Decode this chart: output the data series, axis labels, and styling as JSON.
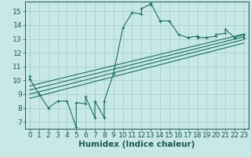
{
  "title": "",
  "xlabel": "Humidex (Indice chaleur)",
  "bg_color": "#c8e8e8",
  "grid_color": "#a8d0d0",
  "line_color": "#1a6e60",
  "xlim": [
    -0.5,
    23.5
  ],
  "ylim": [
    6.5,
    15.7
  ],
  "xticks": [
    0,
    1,
    2,
    3,
    4,
    5,
    6,
    7,
    8,
    9,
    10,
    11,
    12,
    13,
    14,
    15,
    16,
    17,
    18,
    19,
    20,
    21,
    22,
    23
  ],
  "yticks": [
    7,
    8,
    9,
    10,
    11,
    12,
    13,
    14,
    15
  ],
  "x_main": [
    0,
    0,
    1,
    2,
    3,
    4,
    5,
    5,
    6,
    6,
    7,
    7,
    8,
    8,
    9,
    10,
    11,
    12,
    12,
    13,
    13,
    14,
    14,
    15,
    16,
    17,
    18,
    18,
    19,
    20,
    20,
    21,
    21,
    22,
    23,
    23
  ],
  "y_main": [
    10.3,
    10.1,
    9.0,
    8.0,
    8.5,
    8.5,
    6.6,
    8.4,
    8.3,
    8.8,
    7.3,
    8.5,
    7.3,
    8.5,
    10.5,
    13.8,
    14.9,
    14.8,
    15.2,
    15.5,
    15.6,
    14.3,
    14.3,
    14.3,
    13.3,
    13.1,
    13.2,
    13.1,
    13.1,
    13.2,
    13.3,
    13.4,
    13.7,
    13.1,
    13.3,
    13.1
  ],
  "line1_x": [
    0,
    23
  ],
  "line1_y": [
    9.6,
    13.35
  ],
  "line2_x": [
    0,
    23
  ],
  "line2_y": [
    9.3,
    13.15
  ],
  "line3_x": [
    0,
    23
  ],
  "line3_y": [
    9.0,
    12.95
  ],
  "line4_x": [
    0,
    23
  ],
  "line4_y": [
    8.7,
    12.7
  ],
  "font_color": "#1a5a4a",
  "xlabel_fontsize": 7.5,
  "tick_fontsize": 6.5
}
